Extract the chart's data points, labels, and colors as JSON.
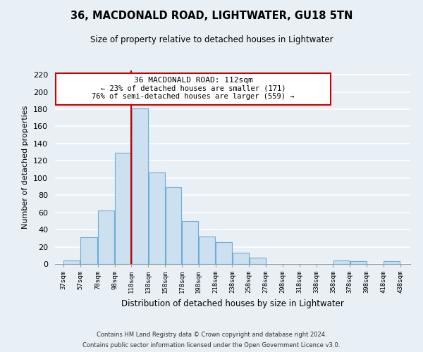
{
  "title": "36, MACDONALD ROAD, LIGHTWATER, GU18 5TN",
  "subtitle": "Size of property relative to detached houses in Lightwater",
  "xlabel": "Distribution of detached houses by size in Lightwater",
  "ylabel": "Number of detached properties",
  "bar_left_edges": [
    37,
    57,
    78,
    98,
    118,
    138,
    158,
    178,
    198,
    218,
    238,
    258,
    278,
    298,
    318,
    338,
    358,
    378,
    398,
    418
  ],
  "bar_heights": [
    4,
    31,
    62,
    129,
    181,
    106,
    89,
    50,
    32,
    25,
    13,
    7,
    0,
    0,
    0,
    0,
    4,
    3,
    0,
    3
  ],
  "bar_widths": [
    20,
    21,
    20,
    20,
    20,
    20,
    20,
    20,
    20,
    20,
    20,
    20,
    20,
    20,
    20,
    20,
    20,
    20,
    20,
    20
  ],
  "bar_color": "#cce0f0",
  "bar_edge_color": "#6aaed6",
  "tick_labels": [
    "37sqm",
    "57sqm",
    "78sqm",
    "98sqm",
    "118sqm",
    "138sqm",
    "158sqm",
    "178sqm",
    "198sqm",
    "218sqm",
    "238sqm",
    "258sqm",
    "278sqm",
    "298sqm",
    "318sqm",
    "338sqm",
    "358sqm",
    "378sqm",
    "398sqm",
    "418sqm",
    "438sqm"
  ],
  "tick_positions": [
    37,
    57,
    78,
    98,
    118,
    138,
    158,
    178,
    198,
    218,
    238,
    258,
    278,
    298,
    318,
    338,
    358,
    378,
    398,
    418,
    438
  ],
  "ylim": [
    0,
    225
  ],
  "xlim": [
    27,
    450
  ],
  "property_line_x": 118,
  "property_line_color": "#cc0000",
  "annotation_title": "36 MACDONALD ROAD: 112sqm",
  "annotation_line1": "← 23% of detached houses are smaller (171)",
  "annotation_line2": "76% of semi-detached houses are larger (559) →",
  "annotation_box_color": "#ffffff",
  "annotation_box_edge_color": "#cc0000",
  "footer_line1": "Contains HM Land Registry data © Crown copyright and database right 2024.",
  "footer_line2": "Contains public sector information licensed under the Open Government Licence v3.0.",
  "background_color": "#e8eff5",
  "plot_bg_color": "#e8eff5",
  "grid_color": "#ffffff",
  "yticks": [
    0,
    20,
    40,
    60,
    80,
    100,
    120,
    140,
    160,
    180,
    200,
    220
  ]
}
